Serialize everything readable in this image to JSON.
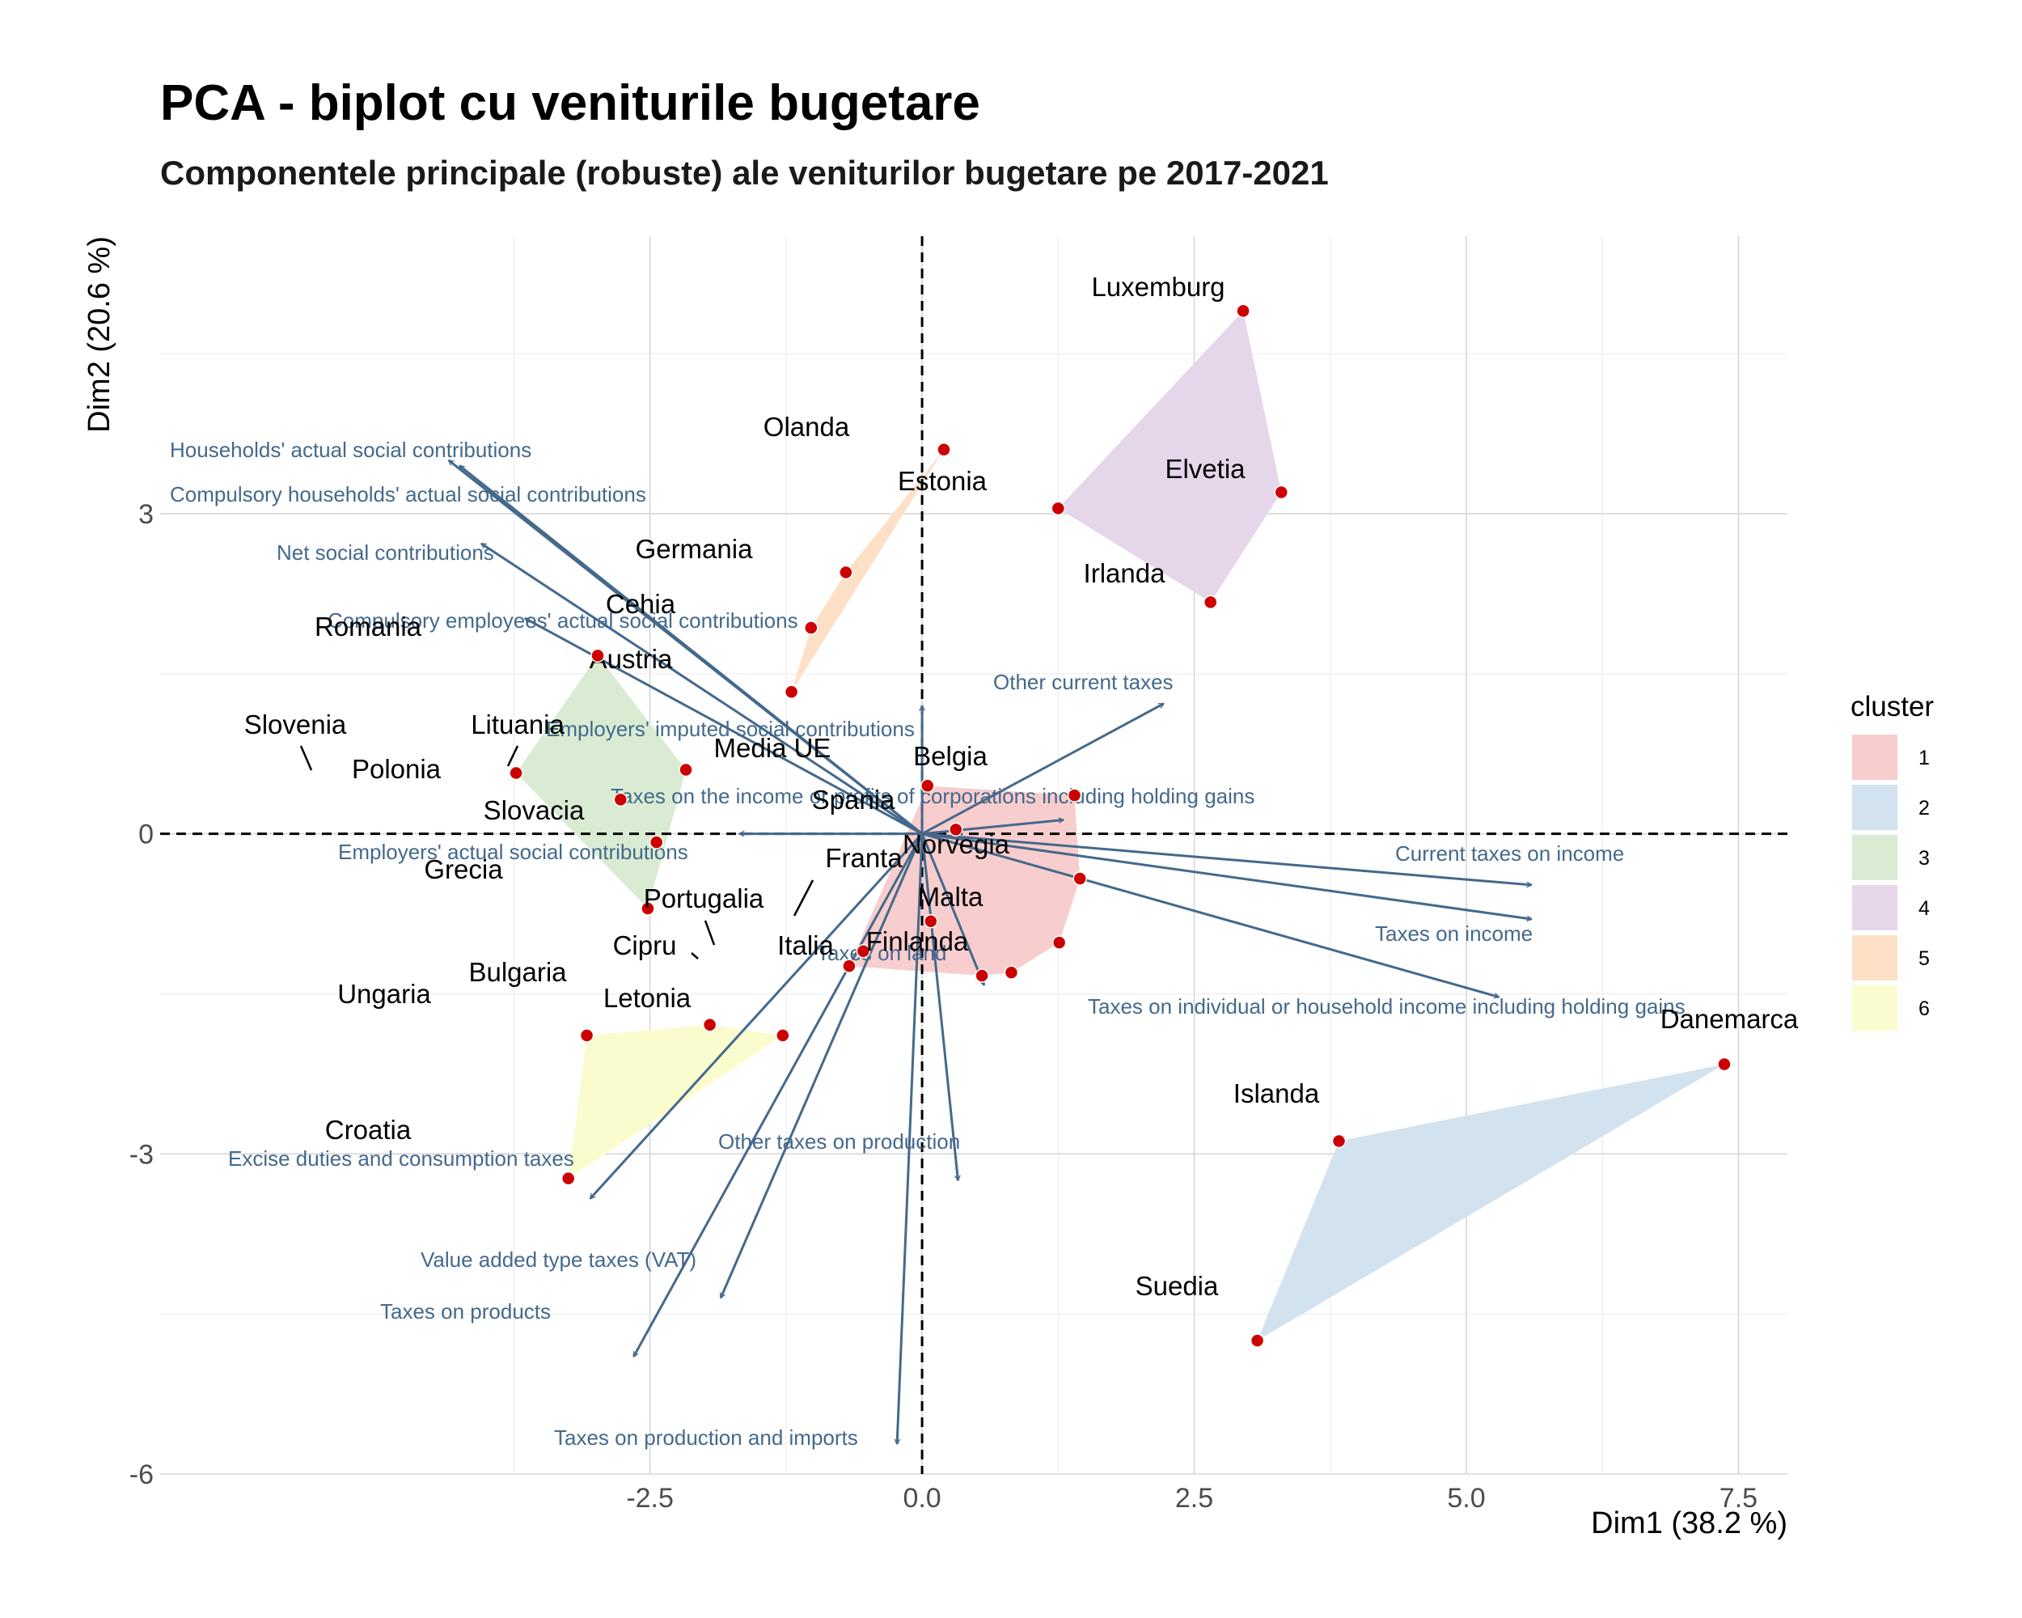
{
  "title": "PCA - biplot cu veniturile bugetare",
  "subtitle": "Componentele principale (robuste) ale veniturilor bugetare pe 2017-2021",
  "chart_data": {
    "type": "scatter",
    "xlabel": "Dim1 (38.2 %)",
    "ylabel": "Dim2 (20.6 %)",
    "xlim": [
      -7.0,
      7.95
    ],
    "ylim": [
      -6.0,
      5.6
    ],
    "xticks": [
      -2.5,
      0.0,
      2.5,
      5.0,
      7.5
    ],
    "xtick_labels": [
      "-2.5",
      "0.0",
      "2.5",
      "5.0",
      "7.5"
    ],
    "yticks": [
      -6,
      -3,
      0,
      3
    ],
    "ytick_labels": [
      "-6",
      "-3",
      "0",
      "3"
    ],
    "grid": true,
    "legend_position": "right",
    "legend": {
      "title": "cluster",
      "entries": [
        {
          "label": "1",
          "color": "#f8cdcd"
        },
        {
          "label": "2",
          "color": "#d3e2ef"
        },
        {
          "label": "3",
          "color": "#d9ecd3"
        },
        {
          "label": "4",
          "color": "#e6d6ea"
        },
        {
          "label": "5",
          "color": "#fde0c6"
        },
        {
          "label": "6",
          "color": "#fbfccd"
        }
      ]
    },
    "points": [
      {
        "name": "Luxemburg",
        "x": 2.95,
        "y": 4.9,
        "cluster": "4"
      },
      {
        "name": "Olanda",
        "x": 0.2,
        "y": 3.6,
        "cluster": "5"
      },
      {
        "name": "Estonia",
        "x": 1.25,
        "y": 3.05,
        "cluster": "4"
      },
      {
        "name": "Elvetia",
        "x": 3.3,
        "y": 3.2,
        "cluster": "4"
      },
      {
        "name": "Irlanda",
        "x": 2.65,
        "y": 2.17,
        "cluster": "4"
      },
      {
        "name": "Germania",
        "x": -0.7,
        "y": 2.45,
        "cluster": "5"
      },
      {
        "name": "Cehia",
        "x": -1.02,
        "y": 1.93,
        "cluster": "5"
      },
      {
        "name": "Austria",
        "x": -1.2,
        "y": 1.33,
        "cluster": "5"
      },
      {
        "name": "Romania",
        "x": -2.98,
        "y": 1.67,
        "cluster": "3"
      },
      {
        "name": "Slovenia",
        "x": -3.73,
        "y": 0.57,
        "cluster": "3"
      },
      {
        "name": "Lituania",
        "x": -2.17,
        "y": 0.6,
        "cluster": "3"
      },
      {
        "name": "Polonia",
        "x": -2.77,
        "y": 0.32,
        "cluster": "3"
      },
      {
        "name": "Slovacia",
        "x": -2.44,
        "y": -0.08,
        "cluster": "3"
      },
      {
        "name": "Grecia",
        "x": -2.52,
        "y": -0.7,
        "cluster": "3"
      },
      {
        "name": "Media UE",
        "x": 0.05,
        "y": 0.45,
        "cluster": "1"
      },
      {
        "name": "Belgia",
        "x": 1.4,
        "y": 0.36,
        "cluster": "1"
      },
      {
        "name": "Spania",
        "x": 0.31,
        "y": 0.04,
        "cluster": "1"
      },
      {
        "name": "Norvegia",
        "x": 1.45,
        "y": -0.42,
        "cluster": "1"
      },
      {
        "name": "Franta",
        "x": 0.08,
        "y": -0.82,
        "cluster": "1"
      },
      {
        "name": "Malta",
        "x": 1.26,
        "y": -1.02,
        "cluster": "1"
      },
      {
        "name": "Portugalia",
        "x": -0.54,
        "y": -1.1,
        "cluster": "1"
      },
      {
        "name": "Cipru",
        "x": -0.67,
        "y": -1.24,
        "cluster": "1"
      },
      {
        "name": "Italia",
        "x": 0.55,
        "y": -1.33,
        "cluster": "1"
      },
      {
        "name": "Finlanda",
        "x": 0.82,
        "y": -1.3,
        "cluster": "1"
      },
      {
        "name": "Ungaria",
        "x": -3.08,
        "y": -1.89,
        "cluster": "6"
      },
      {
        "name": "Bulgaria",
        "x": -1.95,
        "y": -1.79,
        "cluster": "6"
      },
      {
        "name": "Letonia",
        "x": -1.28,
        "y": -1.89,
        "cluster": "6"
      },
      {
        "name": "Croatia",
        "x": -3.25,
        "y": -3.23,
        "cluster": "6"
      },
      {
        "name": "Danemarca",
        "x": 7.37,
        "y": -2.16,
        "cluster": "2"
      },
      {
        "name": "Islanda",
        "x": 3.83,
        "y": -2.88,
        "cluster": "2"
      },
      {
        "name": "Suedia",
        "x": 3.08,
        "y": -4.75,
        "cluster": "2"
      }
    ],
    "hulls": [
      {
        "cluster": "1",
        "members": [
          "Media UE",
          "Belgia",
          "Norvegia",
          "Malta",
          "Finlanda",
          "Italia",
          "Cipru",
          "Portugalia"
        ]
      },
      {
        "cluster": "2",
        "members": [
          "Danemarca",
          "Islanda",
          "Suedia"
        ]
      },
      {
        "cluster": "3",
        "members": [
          "Romania",
          "Slovenia",
          "Polonia",
          "Grecia",
          "Slovacia",
          "Lituania"
        ]
      },
      {
        "cluster": "4",
        "members": [
          "Luxemburg",
          "Elvetia",
          "Irlanda",
          "Estonia"
        ]
      },
      {
        "cluster": "5",
        "members": [
          "Olanda",
          "Germania",
          "Cehia",
          "Austria"
        ]
      },
      {
        "cluster": "6",
        "members": [
          "Ungaria",
          "Bulgaria",
          "Letonia",
          "Croatia"
        ]
      }
    ],
    "loadings": [
      {
        "name": "Households' actual social contributions",
        "x": -4.35,
        "y": 3.5
      },
      {
        "name": "Compulsory households' actual social contributions",
        "x": -4.25,
        "y": 3.45
      },
      {
        "name": "Net social contributions",
        "x": -4.05,
        "y": 2.72
      },
      {
        "name": "Compulsory employees' actual social contributions",
        "x": -3.65,
        "y": 2.02
      },
      {
        "name": "Employers' imputed social contributions",
        "x": 0.0,
        "y": 1.2
      },
      {
        "name": "Other current taxes",
        "x": 2.22,
        "y": 1.22
      },
      {
        "name": "Taxes on the income or profits of corporations including holding gains",
        "x": 1.3,
        "y": 0.13
      },
      {
        "name": "Employers' actual social contributions",
        "x": -1.68,
        "y": 0.0
      },
      {
        "name": "Current taxes on income",
        "x": 5.6,
        "y": -0.48
      },
      {
        "name": "Taxes on income",
        "x": 5.6,
        "y": -0.8
      },
      {
        "name": "Taxes on individual or household income including holding gains",
        "x": 5.3,
        "y": -1.53
      },
      {
        "name": "Taxes on land",
        "x": 0.57,
        "y": -1.42
      },
      {
        "name": "Other taxes on production",
        "x": 0.33,
        "y": -3.25
      },
      {
        "name": "Excise duties and consumption taxes",
        "x": -3.05,
        "y": -3.42
      },
      {
        "name": "Value added type taxes (VAT)",
        "x": -1.85,
        "y": -4.35
      },
      {
        "name": "Taxes on products",
        "x": -2.65,
        "y": -4.9
      },
      {
        "name": "Taxes on production and imports",
        "x": -0.23,
        "y": -5.72
      }
    ]
  }
}
